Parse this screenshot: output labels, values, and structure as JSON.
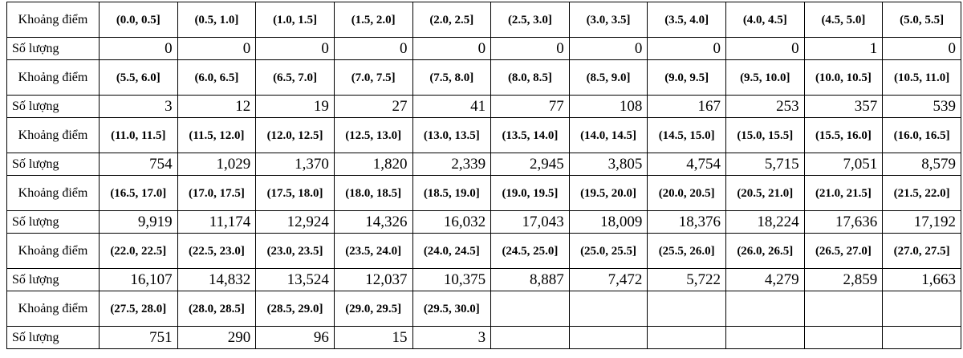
{
  "table": {
    "rows": [
      [
        "Khoảng điểm",
        "(0.0, 0.5]",
        "(0.5, 1.0]",
        "(1.0, 1.5]",
        "(1.5, 2.0]",
        "(2.0, 2.5]",
        "(2.5, 3.0]",
        "(3.0, 3.5]",
        "(3.5, 4.0]",
        "(4.0, 4.5]",
        "(4.5, 5.0]",
        "(5.0, 5.5]"
      ],
      [
        "Số lượng",
        "0",
        "0",
        "0",
        "0",
        "0",
        "0",
        "0",
        "0",
        "0",
        "1",
        "0"
      ],
      [
        "Khoảng điểm",
        "(5.5, 6.0]",
        "(6.0, 6.5]",
        "(6.5, 7.0]",
        "(7.0, 7.5]",
        "(7.5, 8.0]",
        "(8.0, 8.5]",
        "(8.5, 9.0]",
        "(9.0, 9.5]",
        "(9.5, 10.0]",
        "(10.0, 10.5]",
        "(10.5, 11.0]"
      ],
      [
        "Số lượng",
        "3",
        "12",
        "19",
        "27",
        "41",
        "77",
        "108",
        "167",
        "253",
        "357",
        "539"
      ],
      [
        "Khoảng điểm",
        "(11.0, 11.5]",
        "(11.5, 12.0]",
        "(12.0, 12.5]",
        "(12.5, 13.0]",
        "(13.0, 13.5]",
        "(13.5, 14.0]",
        "(14.0, 14.5]",
        "(14.5, 15.0]",
        "(15.0, 15.5]",
        "(15.5, 16.0]",
        "(16.0, 16.5]"
      ],
      [
        "Số lượng",
        "754",
        "1,029",
        "1,370",
        "1,820",
        "2,339",
        "2,945",
        "3,805",
        "4,754",
        "5,715",
        "7,051",
        "8,579"
      ],
      [
        "Khoảng điểm",
        "(16.5, 17.0]",
        "(17.0, 17.5]",
        "(17.5, 18.0]",
        "(18.0, 18.5]",
        "(18.5, 19.0]",
        "(19.0, 19.5]",
        "(19.5, 20.0]",
        "(20.0, 20.5]",
        "(20.5, 21.0]",
        "(21.0, 21.5]",
        "(21.5, 22.0]"
      ],
      [
        "Số lượng",
        "9,919",
        "11,174",
        "12,924",
        "14,326",
        "16,032",
        "17,043",
        "18,009",
        "18,376",
        "18,224",
        "17,636",
        "17,192"
      ],
      [
        "Khoảng điểm",
        "(22.0, 22.5]",
        "(22.5, 23.0]",
        "(23.0, 23.5]",
        "(23.5, 24.0]",
        "(24.0, 24.5]",
        "(24.5, 25.0]",
        "(25.0, 25.5]",
        "(25.5, 26.0]",
        "(26.0, 26.5]",
        "(26.5, 27.0]",
        "(27.0, 27.5]"
      ],
      [
        "Số lượng",
        "16,107",
        "14,832",
        "13,524",
        "12,037",
        "10,375",
        "8,887",
        "7,472",
        "5,722",
        "4,279",
        "2,859",
        "1,663"
      ],
      [
        "Khoảng điểm",
        "(27.5, 28.0]",
        "(28.0, 28.5]",
        "(28.5, 29.0]",
        "(29.0, 29.5]",
        "(29.5, 30.0]"
      ],
      [
        "Số lượng",
        "751",
        "290",
        "96",
        "15",
        "3"
      ]
    ]
  }
}
